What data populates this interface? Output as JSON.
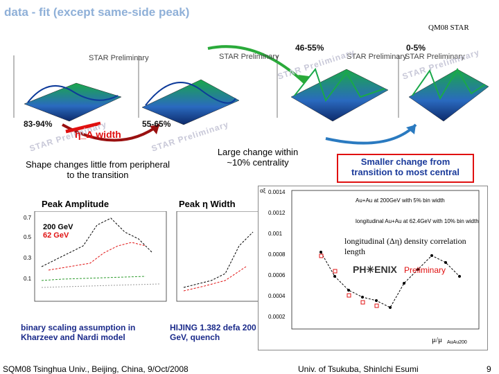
{
  "header": {
    "title": "data - fit (except same-side peak)",
    "conference": "QM08 STAR"
  },
  "plots3d": [
    {
      "label": "STAR Preliminary",
      "centrality": "83-94%",
      "watermark": "STAR Preliminary"
    },
    {
      "label": "STAR Preliminary",
      "centrality": "55-65%",
      "watermark": "STAR Preliminary"
    },
    {
      "label": "STAR Preliminary",
      "centrality": "46-55%",
      "watermark": "STAR Preliminary"
    },
    {
      "label": "STAR Preliminary",
      "centrality": "0-5%",
      "watermark": "STAR Preliminary"
    }
  ],
  "annotations": {
    "width_label": "η_Δ width",
    "shape_note": "Shape changes little from peripheral to the transition",
    "large_change": "Large change within ~10% centrality",
    "smaller_change": "Smaller change from transition to most central"
  },
  "panels": {
    "amplitude_title": "Peak Amplitude",
    "width_title": "Peak η Width",
    "legend_200": "200 GeV",
    "legend_62": "62 GeV",
    "binary_note": "binary scaling assumption in Kharzeev and Nardi model",
    "hijing_note": "HIJING 1.382 defa 200 GeV, quench"
  },
  "phenix": {
    "legend1": "Au+Au at 200GeV with 5% bin width",
    "legend2": "longitudinal Au+Au at 62.4GeV with 10% bin width",
    "correlation": "longitudinal (Δη) density correlation length",
    "logo": "PH✳ENIX",
    "prelim": "Preliminary",
    "xlabel": "μ/μ",
    "xsub": "AuAu200",
    "ylabel": "αξ",
    "yticks": [
      "0.0014",
      "0.0012",
      "0.001",
      "0.0008",
      "0.0006",
      "0.0004",
      "0.0002"
    ]
  },
  "footer": {
    "left": "SQM08 Tsinghua Univ., Beijing, China, 9/Oct/2008",
    "right": "Univ. of Tsukuba, ShinIchi Esumi",
    "page": "9"
  },
  "colors": {
    "red": "#e01010",
    "blue": "#1a3a9a",
    "green": "#2a9a2a"
  }
}
